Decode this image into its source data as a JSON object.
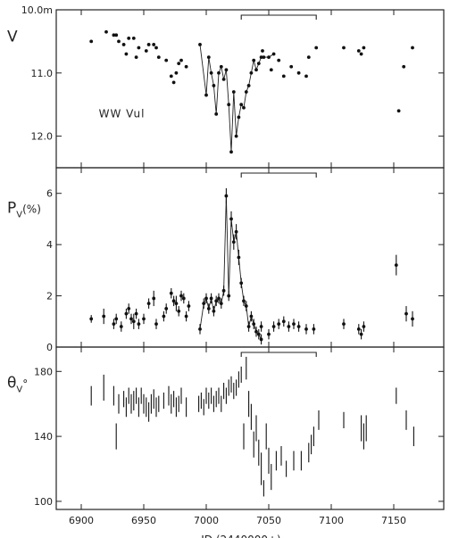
{
  "chart_data": {
    "type": "scatter",
    "xlabel": "JD (2440000+)",
    "xlim": [
      6880,
      7190
    ],
    "xticks": [
      "6900",
      "6950",
      "7000",
      "7050",
      "7100",
      "7150"
    ],
    "xtick_values": [
      6900,
      6950,
      7000,
      7050,
      7100,
      7150
    ],
    "panels": [
      {
        "id": "v",
        "ylabel_main": "V",
        "ylabel_sub": "",
        "ylabel_suffix": "",
        "annotation": "WW Vul",
        "ylim": [
          10.0,
          12.5
        ],
        "inverted": true,
        "yticks": [
          "10.0m",
          "11.0",
          "12.0"
        ],
        "ytick_values": [
          10.0,
          11.0,
          12.0
        ],
        "bracket": [
          7028,
          7088
        ],
        "isolated": [
          [
            6908,
            10.5
          ],
          [
            6920,
            10.35
          ],
          [
            6926,
            10.4
          ],
          [
            6928,
            10.4
          ],
          [
            6930,
            10.5
          ],
          [
            6934,
            10.55
          ],
          [
            6936,
            10.7
          ],
          [
            6938,
            10.45
          ],
          [
            6942,
            10.45
          ],
          [
            6944,
            10.75
          ],
          [
            6946,
            10.6
          ],
          [
            6952,
            10.65
          ],
          [
            6954,
            10.55
          ],
          [
            6958,
            10.55
          ],
          [
            6960,
            10.6
          ],
          [
            6962,
            10.75
          ],
          [
            6968,
            10.8
          ],
          [
            6972,
            11.05
          ],
          [
            6974,
            11.15
          ],
          [
            6976,
            11.0
          ],
          [
            6978,
            10.85
          ],
          [
            6980,
            10.8
          ],
          [
            6984,
            10.9
          ],
          [
            7045,
            10.65
          ],
          [
            7052,
            10.95
          ],
          [
            7058,
            10.8
          ],
          [
            7062,
            11.05
          ],
          [
            7068,
            10.9
          ],
          [
            7074,
            11.0
          ],
          [
            7080,
            11.05
          ],
          [
            7082,
            10.75
          ],
          [
            7088,
            10.6
          ],
          [
            7110,
            10.6
          ],
          [
            7122,
            10.65
          ],
          [
            7124,
            10.7
          ],
          [
            7126,
            10.6
          ],
          [
            7154,
            11.6
          ],
          [
            7158,
            10.9
          ],
          [
            7165,
            10.6
          ]
        ],
        "connected": [
          [
            6995,
            10.55
          ],
          [
            7000,
            11.35
          ],
          [
            7002,
            10.75
          ],
          [
            7004,
            11.0
          ],
          [
            7006,
            11.2
          ],
          [
            7008,
            11.65
          ],
          [
            7010,
            11.0
          ],
          [
            7012,
            10.9
          ],
          [
            7014,
            11.1
          ],
          [
            7016,
            10.95
          ],
          [
            7018,
            11.5
          ],
          [
            7020,
            12.25
          ],
          [
            7022,
            11.3
          ],
          [
            7024,
            12.0
          ],
          [
            7026,
            11.7
          ],
          [
            7028,
            11.5
          ],
          [
            7030,
            11.55
          ],
          [
            7032,
            11.3
          ],
          [
            7034,
            11.2
          ],
          [
            7036,
            11.0
          ],
          [
            7038,
            10.8
          ],
          [
            7040,
            10.95
          ],
          [
            7042,
            10.85
          ],
          [
            7044,
            10.75
          ],
          [
            7046,
            10.75
          ],
          [
            7050,
            10.75
          ],
          [
            7054,
            10.7
          ]
        ]
      },
      {
        "id": "pv",
        "ylabel_main": "P",
        "ylabel_sub": "V",
        "ylabel_suffix": "(%)",
        "annotation": "",
        "ylim": [
          0,
          7
        ],
        "inverted": false,
        "yticks": [
          "0",
          "2",
          "4",
          "6"
        ],
        "ytick_values": [
          0,
          2,
          4,
          6
        ],
        "bracket": [
          7028,
          7088
        ],
        "isolated": [
          [
            6908,
            1.1,
            0.15
          ],
          [
            6918,
            1.2,
            0.3
          ],
          [
            6926,
            0.9,
            0.2
          ],
          [
            6928,
            1.1,
            0.2
          ],
          [
            6932,
            0.8,
            0.2
          ],
          [
            6936,
            1.3,
            0.2
          ],
          [
            6938,
            1.5,
            0.2
          ],
          [
            6940,
            1.1,
            0.2
          ],
          [
            6942,
            1.0,
            0.3
          ],
          [
            6944,
            1.3,
            0.2
          ],
          [
            6946,
            0.9,
            0.2
          ],
          [
            6950,
            1.1,
            0.2
          ],
          [
            6954,
            1.7,
            0.2
          ],
          [
            6958,
            1.9,
            0.3
          ],
          [
            6960,
            0.9,
            0.2
          ],
          [
            6966,
            1.2,
            0.2
          ],
          [
            6968,
            1.5,
            0.2
          ],
          [
            6972,
            2.1,
            0.2
          ],
          [
            6974,
            1.8,
            0.2
          ],
          [
            6976,
            1.7,
            0.3
          ],
          [
            6978,
            1.4,
            0.2
          ],
          [
            6980,
            2.0,
            0.2
          ],
          [
            6982,
            1.9,
            0.2
          ],
          [
            6984,
            1.2,
            0.2
          ],
          [
            6986,
            1.6,
            0.2
          ],
          [
            7044,
            0.8,
            0.2
          ],
          [
            7050,
            0.5,
            0.2
          ],
          [
            7054,
            0.8,
            0.2
          ],
          [
            7058,
            0.9,
            0.2
          ],
          [
            7062,
            1.0,
            0.2
          ],
          [
            7066,
            0.8,
            0.2
          ],
          [
            7070,
            0.9,
            0.2
          ],
          [
            7074,
            0.8,
            0.2
          ],
          [
            7080,
            0.7,
            0.2
          ],
          [
            7086,
            0.7,
            0.2
          ],
          [
            7110,
            0.9,
            0.2
          ],
          [
            7122,
            0.7,
            0.2
          ],
          [
            7124,
            0.5,
            0.2
          ],
          [
            7126,
            0.8,
            0.2
          ],
          [
            7152,
            3.2,
            0.4
          ],
          [
            7160,
            1.3,
            0.3
          ],
          [
            7165,
            1.1,
            0.3
          ]
        ],
        "connected": [
          [
            6995,
            0.7,
            0.2
          ],
          [
            6998,
            1.7,
            0.2
          ],
          [
            7000,
            1.9,
            0.2
          ],
          [
            7002,
            1.5,
            0.2
          ],
          [
            7004,
            1.9,
            0.2
          ],
          [
            7006,
            1.4,
            0.2
          ],
          [
            7008,
            1.8,
            0.2
          ],
          [
            7010,
            1.9,
            0.2
          ],
          [
            7012,
            1.7,
            0.2
          ],
          [
            7014,
            2.2,
            0.2
          ],
          [
            7016,
            5.9,
            0.3
          ],
          [
            7018,
            2.0,
            0.2
          ],
          [
            7020,
            5.0,
            0.3
          ],
          [
            7022,
            4.1,
            0.3
          ],
          [
            7024,
            4.5,
            0.3
          ],
          [
            7026,
            3.5,
            0.3
          ],
          [
            7028,
            2.5,
            0.2
          ],
          [
            7030,
            1.8,
            0.2
          ],
          [
            7032,
            1.6,
            0.2
          ],
          [
            7034,
            0.8,
            0.2
          ],
          [
            7036,
            1.2,
            0.2
          ],
          [
            7038,
            0.9,
            0.2
          ],
          [
            7040,
            0.6,
            0.2
          ],
          [
            7042,
            0.5,
            0.2
          ],
          [
            7044,
            0.3,
            0.2
          ]
        ]
      },
      {
        "id": "theta",
        "ylabel_main": "θ",
        "ylabel_sub": "V",
        "ylabel_suffix": "°",
        "annotation": "",
        "ylim": [
          95,
          195
        ],
        "inverted": false,
        "yticks": [
          "100",
          "140",
          "180"
        ],
        "ytick_values": [
          100,
          140,
          180
        ],
        "bracket": [
          7028,
          7088
        ],
        "segments": [
          [
            6908,
            165,
            6
          ],
          [
            6918,
            170,
            8
          ],
          [
            6926,
            165,
            6
          ],
          [
            6928,
            140,
            8
          ],
          [
            6930,
            160,
            6
          ],
          [
            6934,
            163,
            5
          ],
          [
            6936,
            158,
            6
          ],
          [
            6938,
            165,
            5
          ],
          [
            6940,
            160,
            6
          ],
          [
            6942,
            162,
            6
          ],
          [
            6944,
            165,
            5
          ],
          [
            6946,
            158,
            6
          ],
          [
            6948,
            165,
            5
          ],
          [
            6950,
            160,
            6
          ],
          [
            6952,
            158,
            6
          ],
          [
            6954,
            155,
            6
          ],
          [
            6956,
            160,
            6
          ],
          [
            6958,
            163,
            6
          ],
          [
            6960,
            158,
            6
          ],
          [
            6962,
            160,
            5
          ],
          [
            6966,
            162,
            5
          ],
          [
            6970,
            165,
            6
          ],
          [
            6972,
            160,
            6
          ],
          [
            6974,
            163,
            5
          ],
          [
            6976,
            158,
            6
          ],
          [
            6978,
            160,
            5
          ],
          [
            6980,
            165,
            5
          ],
          [
            6984,
            158,
            6
          ],
          [
            6994,
            160,
            5
          ],
          [
            6996,
            162,
            5
          ],
          [
            6998,
            158,
            5
          ],
          [
            7000,
            165,
            5
          ],
          [
            7002,
            162,
            5
          ],
          [
            7004,
            165,
            5
          ],
          [
            7006,
            160,
            5
          ],
          [
            7008,
            163,
            5
          ],
          [
            7010,
            165,
            5
          ],
          [
            7012,
            160,
            5
          ],
          [
            7014,
            168,
            5
          ],
          [
            7016,
            165,
            5
          ],
          [
            7018,
            170,
            5
          ],
          [
            7020,
            172,
            5
          ],
          [
            7022,
            168,
            5
          ],
          [
            7024,
            170,
            5
          ],
          [
            7026,
            175,
            5
          ],
          [
            7028,
            178,
            5
          ],
          [
            7030,
            140,
            8
          ],
          [
            7032,
            182,
            7
          ],
          [
            7034,
            160,
            8
          ],
          [
            7036,
            152,
            8
          ],
          [
            7038,
            135,
            8
          ],
          [
            7040,
            145,
            8
          ],
          [
            7042,
            130,
            8
          ],
          [
            7044,
            120,
            10
          ],
          [
            7046,
            108,
            5
          ],
          [
            7048,
            140,
            8
          ],
          [
            7050,
            125,
            8
          ],
          [
            7052,
            115,
            8
          ],
          [
            7056,
            125,
            6
          ],
          [
            7060,
            128,
            6
          ],
          [
            7064,
            120,
            5
          ],
          [
            7070,
            125,
            6
          ],
          [
            7076,
            125,
            6
          ],
          [
            7082,
            130,
            6
          ],
          [
            7084,
            135,
            6
          ],
          [
            7086,
            140,
            6
          ],
          [
            7090,
            150,
            6
          ],
          [
            7110,
            150,
            5
          ],
          [
            7124,
            145,
            8
          ],
          [
            7126,
            140,
            8
          ],
          [
            7128,
            145,
            8
          ],
          [
            7152,
            165,
            5
          ],
          [
            7160,
            150,
            6
          ],
          [
            7166,
            140,
            6
          ]
        ]
      }
    ]
  }
}
